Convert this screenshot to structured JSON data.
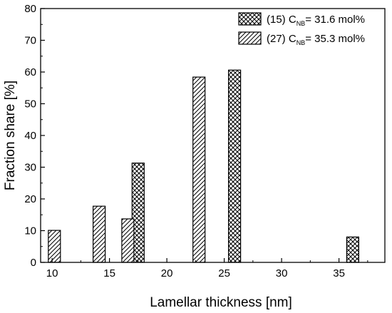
{
  "chart_data": {
    "type": "bar",
    "xlabel": "Lamellar thickness [nm]",
    "ylabel": "Fraction share [%]",
    "xlim": [
      9,
      39
    ],
    "ylim": [
      0,
      80
    ],
    "xticks": [
      "10",
      "15",
      "20",
      "25",
      "30",
      "35"
    ],
    "yticks": [
      "0",
      "10",
      "20",
      "30",
      "40",
      "50",
      "60",
      "70",
      "80"
    ],
    "grid": false,
    "legend_position": "top-right",
    "series": [
      {
        "name_prefix": "(15) C",
        "name_subscript": "NB",
        "name_suffix": "= 31.6 mol%",
        "pattern": "crosshatch",
        "x": [
          17.5,
          25.9,
          36.2
        ],
        "values": [
          31.3,
          60.6,
          8.0
        ]
      },
      {
        "name_prefix": "(27) C",
        "name_subscript": "NB",
        "name_suffix": "= 35.3 mol%",
        "pattern": "diagonal",
        "x": [
          10.2,
          14.1,
          16.6,
          22.8
        ],
        "values": [
          10.1,
          17.7,
          13.7,
          58.4
        ]
      }
    ]
  }
}
